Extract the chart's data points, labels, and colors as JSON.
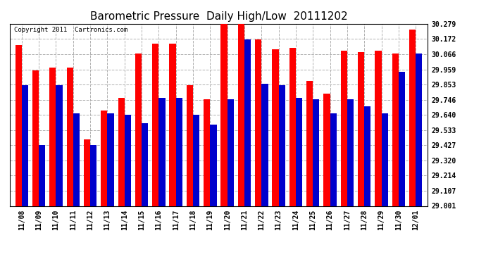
{
  "title": "Barometric Pressure  Daily High/Low  20111202",
  "copyright": "Copyright 2011  Cartronics.com",
  "dates": [
    "11/08",
    "11/09",
    "11/10",
    "11/11",
    "11/12",
    "11/13",
    "11/14",
    "11/15",
    "11/16",
    "11/17",
    "11/18",
    "11/19",
    "11/20",
    "11/21",
    "11/22",
    "11/23",
    "11/24",
    "11/25",
    "11/26",
    "11/27",
    "11/28",
    "11/29",
    "11/30",
    "12/01"
  ],
  "highs": [
    30.13,
    29.95,
    29.97,
    29.97,
    29.47,
    29.67,
    29.76,
    30.07,
    30.14,
    30.14,
    29.85,
    29.75,
    30.28,
    30.28,
    30.17,
    30.1,
    30.11,
    29.88,
    29.79,
    30.09,
    30.08,
    30.09,
    30.07,
    30.24
  ],
  "lows": [
    29.85,
    29.43,
    29.85,
    29.65,
    29.43,
    29.65,
    29.64,
    29.58,
    29.76,
    29.76,
    29.64,
    29.57,
    29.75,
    30.17,
    29.86,
    29.85,
    29.76,
    29.75,
    29.65,
    29.75,
    29.7,
    29.65,
    29.94,
    30.07
  ],
  "ylim_min": 29.001,
  "ylim_max": 30.279,
  "yticks": [
    29.001,
    29.107,
    29.214,
    29.32,
    29.427,
    29.533,
    29.64,
    29.746,
    29.853,
    29.959,
    30.066,
    30.172,
    30.279
  ],
  "high_color": "#ff0000",
  "low_color": "#0000cc",
  "bg_color": "#ffffff",
  "grid_color": "#b0b0b0",
  "bar_width": 0.38,
  "title_fontsize": 11,
  "tick_fontsize": 7,
  "copyright_fontsize": 6.5
}
